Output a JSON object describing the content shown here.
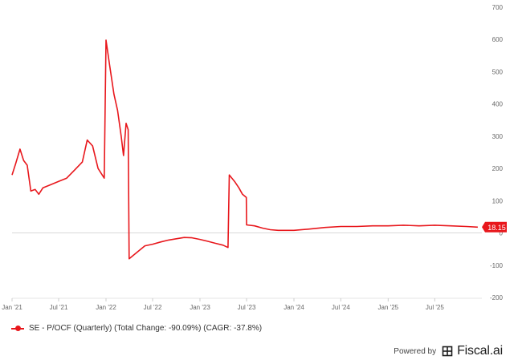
{
  "chart_data": {
    "type": "line",
    "title": "",
    "xlabel": "",
    "ylabel": "",
    "ylim": [
      -200,
      700
    ],
    "yticks": [
      -200,
      -100,
      0,
      100,
      200,
      300,
      400,
      500,
      600,
      700
    ],
    "grid": false,
    "zero_line": true,
    "xticks": [
      {
        "date": "2021-01-01",
        "label": "Jan '21"
      },
      {
        "date": "2021-07-01",
        "label": "Jul '21"
      },
      {
        "date": "2022-01-01",
        "label": "Jan '22"
      },
      {
        "date": "2022-07-01",
        "label": "Jul '22"
      },
      {
        "date": "2023-01-01",
        "label": "Jan '23"
      },
      {
        "date": "2023-07-01",
        "label": "Jul '23"
      },
      {
        "date": "2024-01-01",
        "label": "Jan '24"
      },
      {
        "date": "2024-07-01",
        "label": "Jul '24"
      },
      {
        "date": "2025-01-01",
        "label": "Jan '25"
      },
      {
        "date": "2025-07-01",
        "label": "Jul '25"
      }
    ],
    "series": [
      {
        "name": "SE - P/OCF (Quarterly)",
        "color": "#e8171c",
        "last_value_label": "18.15",
        "points": [
          [
            "2021-01-01",
            180
          ],
          [
            "2021-01-15",
            215
          ],
          [
            "2021-02-01",
            260
          ],
          [
            "2021-02-15",
            225
          ],
          [
            "2021-03-01",
            210
          ],
          [
            "2021-03-15",
            130
          ],
          [
            "2021-04-01",
            135
          ],
          [
            "2021-04-15",
            120
          ],
          [
            "2021-05-01",
            140
          ],
          [
            "2021-06-01",
            150
          ],
          [
            "2021-07-01",
            160
          ],
          [
            "2021-08-01",
            170
          ],
          [
            "2021-09-01",
            195
          ],
          [
            "2021-10-01",
            220
          ],
          [
            "2021-10-20",
            288
          ],
          [
            "2021-11-10",
            270
          ],
          [
            "2021-12-01",
            200
          ],
          [
            "2021-12-25",
            170
          ],
          [
            "2022-01-01",
            598
          ],
          [
            "2022-01-15",
            520
          ],
          [
            "2022-02-01",
            430
          ],
          [
            "2022-02-15",
            380
          ],
          [
            "2022-03-01",
            300
          ],
          [
            "2022-03-10",
            240
          ],
          [
            "2022-03-20",
            340
          ],
          [
            "2022-03-28",
            320
          ],
          [
            "2022-04-01",
            -80
          ],
          [
            "2022-05-01",
            -60
          ],
          [
            "2022-06-01",
            -40
          ],
          [
            "2022-07-01",
            -35
          ],
          [
            "2022-08-01",
            -28
          ],
          [
            "2022-09-01",
            -22
          ],
          [
            "2022-10-01",
            -18
          ],
          [
            "2022-11-01",
            -14
          ],
          [
            "2022-12-01",
            -15
          ],
          [
            "2023-01-01",
            -20
          ],
          [
            "2023-02-01",
            -26
          ],
          [
            "2023-03-01",
            -32
          ],
          [
            "2023-04-01",
            -38
          ],
          [
            "2023-04-20",
            -45
          ],
          [
            "2023-04-25",
            180
          ],
          [
            "2023-05-15",
            160
          ],
          [
            "2023-06-01",
            140
          ],
          [
            "2023-06-15",
            120
          ],
          [
            "2023-06-30",
            110
          ],
          [
            "2023-07-01",
            25
          ],
          [
            "2023-08-01",
            22
          ],
          [
            "2023-09-01",
            15
          ],
          [
            "2023-10-01",
            10
          ],
          [
            "2023-11-01",
            8
          ],
          [
            "2023-12-01",
            8
          ],
          [
            "2024-01-01",
            8
          ],
          [
            "2024-03-01",
            12
          ],
          [
            "2024-05-01",
            17
          ],
          [
            "2024-07-01",
            20
          ],
          [
            "2024-09-01",
            20
          ],
          [
            "2024-11-01",
            22
          ],
          [
            "2025-01-01",
            22
          ],
          [
            "2025-03-01",
            24
          ],
          [
            "2025-05-01",
            22
          ],
          [
            "2025-07-01",
            24
          ],
          [
            "2025-09-01",
            22
          ],
          [
            "2025-11-01",
            20
          ],
          [
            "2025-12-15",
            18.15
          ]
        ]
      }
    ]
  },
  "legend": {
    "label": "SE - P/OCF (Quarterly) (Total Change: -90.09%) (CAGR: -37.8%)"
  },
  "footer": {
    "powered_by": "Powered by",
    "brand": "Fiscal.ai",
    "logo_icon": "fiscal-ai-logo-icon"
  }
}
